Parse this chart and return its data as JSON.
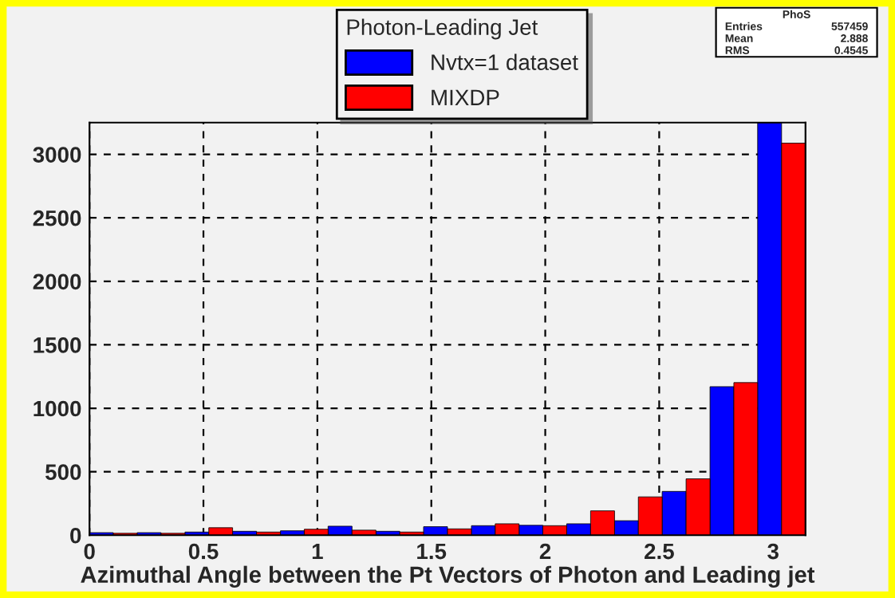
{
  "chart_data": {
    "type": "histogram",
    "xlabel": "Azimuthal Angle between the Pt Vectors of Photon and Leading jet",
    "legend_title": "Photon-Leading Jet",
    "bins": [
      0,
      0.209,
      0.419,
      0.628,
      0.838,
      1.047,
      1.257,
      1.466,
      1.676,
      1.885,
      2.094,
      2.304,
      2.513,
      2.723,
      2.932,
      3.142
    ],
    "series": [
      {
        "name": "Nvtx=1 dataset",
        "color": "#0000ff",
        "values": [
          20,
          20,
          25,
          31,
          35,
          71,
          31,
          67,
          75,
          78,
          90,
          114,
          345,
          1170,
          3250
        ]
      },
      {
        "name": "MIXDP",
        "color": "#ff0000",
        "values": [
          15,
          15,
          59,
          25,
          47,
          40,
          25,
          50,
          90,
          75,
          192,
          302,
          444,
          1202,
          3088
        ]
      }
    ],
    "xlim": [
      0,
      3.142
    ],
    "ylim": [
      0,
      3250
    ],
    "xticks": [
      0,
      0.5,
      1,
      1.5,
      2,
      2.5,
      3
    ],
    "yticks": [
      0,
      500,
      1000,
      1500,
      2000,
      2500,
      3000
    ],
    "grid": true,
    "legend": "top",
    "annotations": [
      "PhoS",
      "Entries 557459",
      "Mean 2.888",
      "RMS 0.4545"
    ]
  }
}
